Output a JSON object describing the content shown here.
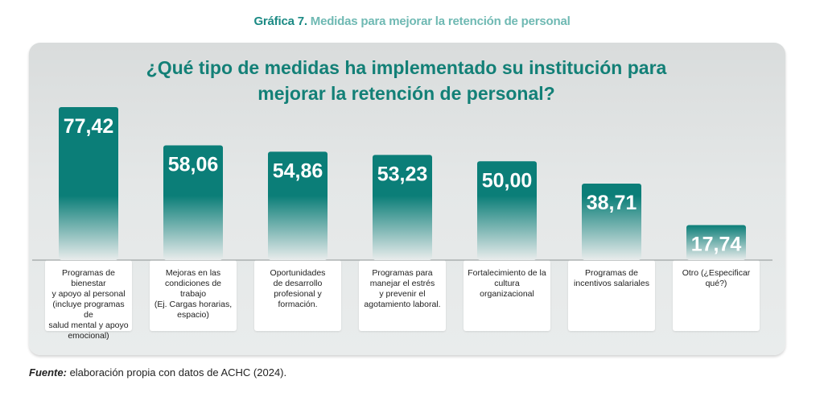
{
  "figure": {
    "caption_number": "Gráfica 7.",
    "caption_text": "Medidas para mejorar la retención de personal"
  },
  "question_line1": "¿Qué tipo de medidas ha implementado su institución para",
  "question_line2": "mejorar la retención de personal?",
  "source": {
    "label": "Fuente:",
    "text": " elaboración propia con datos de ACHC (2024)."
  },
  "colors": {
    "bar_top": "#0b7e78",
    "bar_fade": "#e9ecec",
    "title": "#138077",
    "caption_number": "#1b8a84",
    "caption_text": "#6fb9b3"
  },
  "chart_data": {
    "type": "bar",
    "title": "¿Qué tipo de medidas ha implementado su institución para mejorar la retención de personal?",
    "categories": [
      "Programas de bienestar y apoyo al personal (incluye programas de salud mental y apoyo emocional)",
      "Mejoras en las condiciones de trabajo (Ej. Cargas horarias, espacio)",
      "Oportunidades de desarrollo profesional y formación.",
      "Programas para manejar el estrés y prevenir el agotamiento laboral.",
      "Fortalecimiento de la cultura organizacional",
      "Programas de incentivos salariales",
      "Otro (¿Especificar qué?)"
    ],
    "category_lines": [
      [
        "Programas de bienestar",
        "y apoyo al personal",
        "(incluye programas de",
        "salud mental y apoyo",
        "emocional)"
      ],
      [
        "Mejoras en las",
        "condiciones de trabajo",
        "(Ej. Cargas horarias,",
        "espacio)"
      ],
      [
        "Oportunidades",
        "de desarrollo",
        "profesional y",
        "formación."
      ],
      [
        "Programas para",
        "manejar el estrés",
        "y prevenir el",
        "agotamiento laboral."
      ],
      [
        "Fortalecimiento de la",
        "cultura organizacional"
      ],
      [
        "Programas de",
        "incentivos salariales"
      ],
      [
        "Otro (¿Especificar",
        "qué?)"
      ]
    ],
    "values": [
      77.42,
      58.06,
      54.86,
      53.23,
      50.0,
      38.71,
      17.74
    ],
    "value_labels": [
      "77,42",
      "58,06",
      "54,86",
      "53,23",
      "50,00",
      "38,71",
      "17,74"
    ],
    "xlabel": "",
    "ylabel": "",
    "ylim": [
      0,
      77.42
    ],
    "grid": false,
    "legend": "none"
  }
}
